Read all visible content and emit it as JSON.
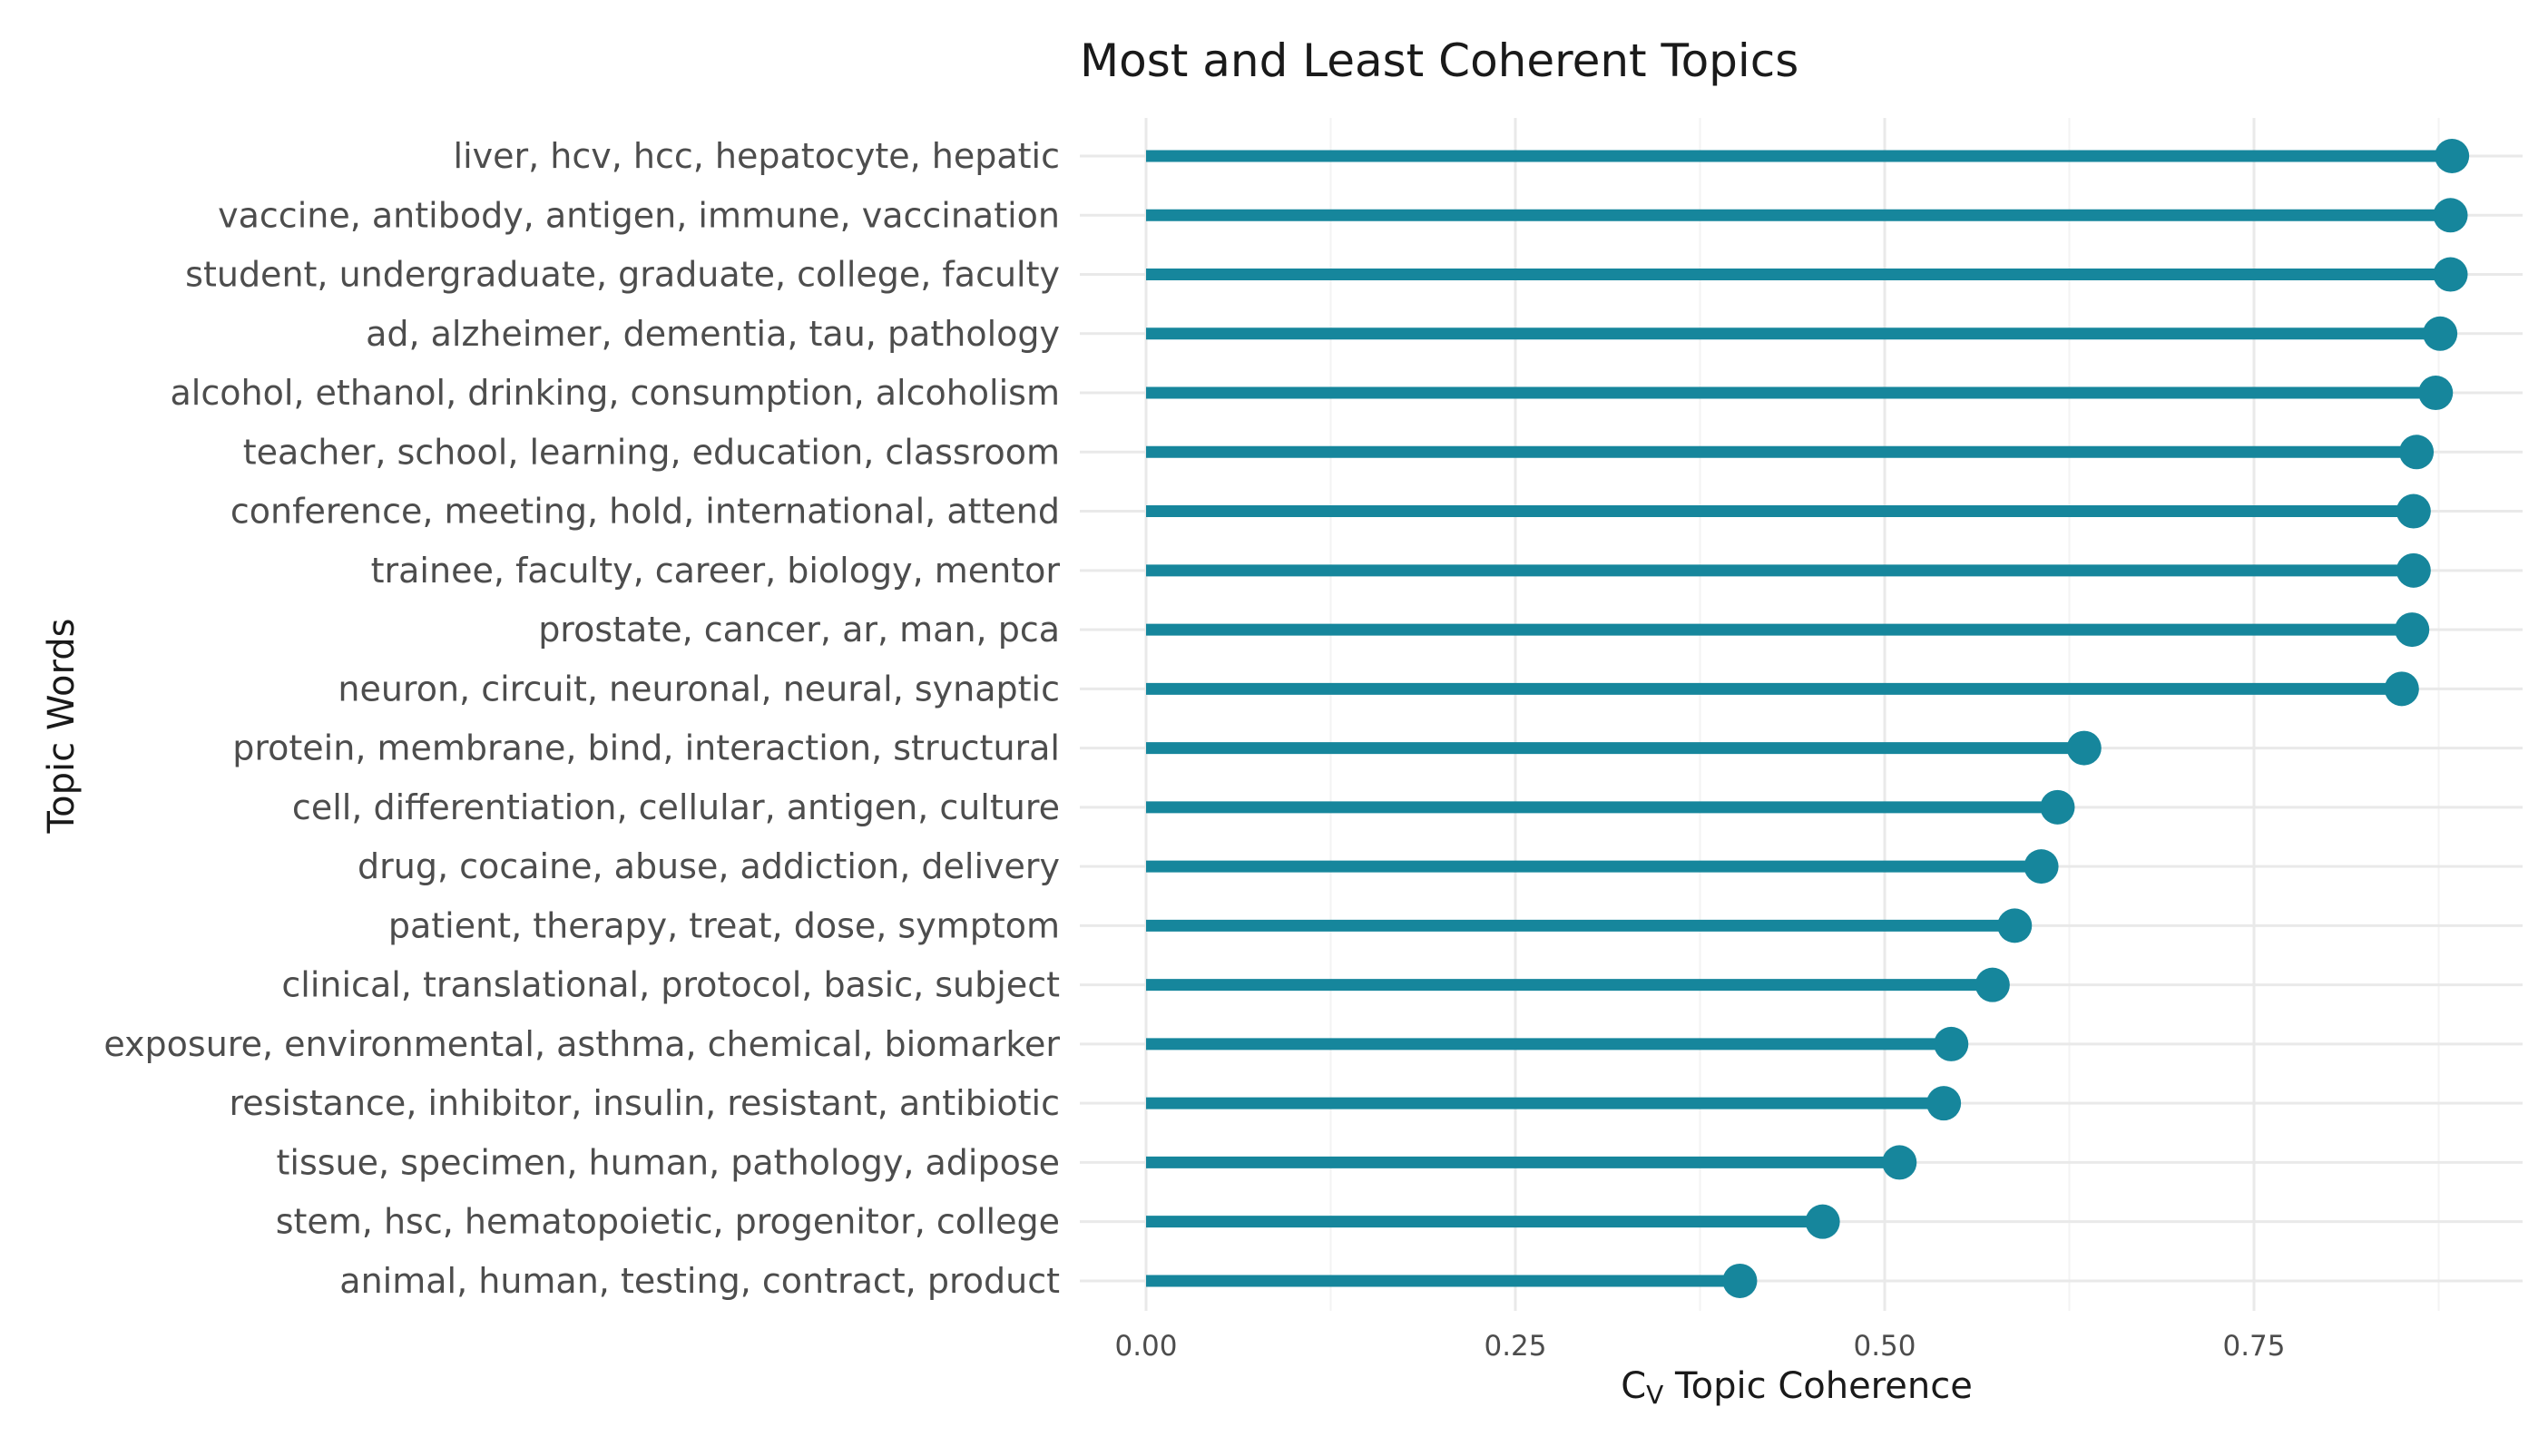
{
  "chart_data": {
    "type": "lollipop",
    "title": "Most and Least Coherent Topics",
    "xlabel_main": "C",
    "xlabel_sub": "V",
    "xlabel_rest": " Topic Coherence",
    "ylabel": "Topic Words",
    "xlim": [
      0,
      0.93
    ],
    "xticks": [
      "0.00",
      "0.25",
      "0.50",
      "0.75"
    ],
    "grid": true,
    "color": "#16869C",
    "categories": [
      "liver, hcv, hcc, hepatocyte, hepatic",
      "vaccine, antibody, antigen, immune, vaccination",
      "student, undergraduate, graduate, college, faculty",
      "ad, alzheimer, dementia, tau, pathology",
      "alcohol, ethanol, drinking, consumption, alcoholism",
      "teacher, school, learning, education, classroom",
      "conference, meeting, hold, international, attend",
      "trainee, faculty, career, biology, mentor",
      "prostate, cancer, ar, man, pca",
      "neuron, circuit, neuronal, neural, synaptic",
      "protein, membrane, bind, interaction, structural",
      "cell, differentiation, cellular, antigen, culture",
      "drug, cocaine, abuse, addiction, delivery",
      "patient, therapy, treat, dose, symptom",
      "clinical, translational, protocol, basic, subject",
      "exposure, environmental, asthma, chemical, biomarker",
      "resistance, inhibitor, insulin, resistant, antibiotic",
      "tissue, specimen, human, pathology, adipose",
      "stem, hsc, hematopoietic, progenitor, college",
      "animal, human, testing, contract, product"
    ],
    "values": [
      0.884,
      0.883,
      0.883,
      0.876,
      0.873,
      0.86,
      0.858,
      0.858,
      0.857,
      0.85,
      0.635,
      0.617,
      0.606,
      0.588,
      0.573,
      0.545,
      0.54,
      0.51,
      0.458,
      0.402
    ]
  }
}
